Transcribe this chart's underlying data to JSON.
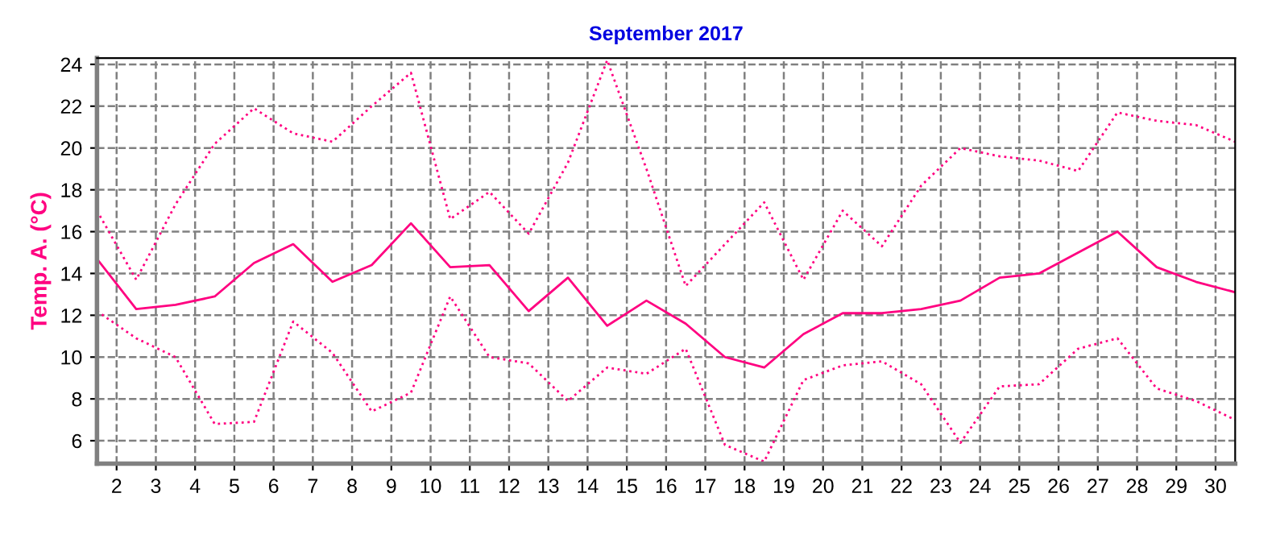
{
  "chart_data": {
    "type": "line",
    "title": "September 2017",
    "ylabel": "Temp. A. (°C)",
    "x": [
      1.5,
      2.5,
      3.5,
      4.5,
      5.5,
      6.5,
      7.5,
      8.5,
      9.5,
      10.5,
      11.5,
      12.5,
      13.5,
      14.5,
      15.5,
      16.5,
      17.5,
      18.5,
      19.5,
      20.5,
      21.5,
      22.5,
      23.5,
      24.5,
      25.5,
      26.5,
      27.5,
      28.5,
      29.5,
      30.5
    ],
    "series": [
      {
        "color": "#ff0080",
        "line_style": "dotted",
        "values": [
          17.0,
          13.7,
          17.3,
          20.2,
          21.9,
          20.7,
          20.3,
          22.0,
          23.6,
          16.6,
          17.9,
          15.9,
          19.3,
          24.2,
          19.0,
          13.4,
          15.4,
          17.4,
          13.7,
          17.0,
          15.3,
          18.2,
          20.0,
          19.6,
          19.4,
          18.9,
          21.7,
          21.3,
          21.1,
          20.3
        ]
      },
      {
        "color": "#ff0080",
        "line_style": "solid",
        "values": [
          14.7,
          12.3,
          12.5,
          12.9,
          14.5,
          15.4,
          13.6,
          14.4,
          16.4,
          14.3,
          14.4,
          12.2,
          13.8,
          11.5,
          12.7,
          11.6,
          10.0,
          9.5,
          11.1,
          12.1,
          12.1,
          12.3,
          12.7,
          13.8,
          14.0,
          15.0,
          16.0,
          14.3,
          13.6,
          13.1
        ]
      },
      {
        "color": "#ff0080",
        "line_style": "dotted",
        "values": [
          12.2,
          10.9,
          10.0,
          6.8,
          6.9,
          11.7,
          10.2,
          7.4,
          8.3,
          12.9,
          10.0,
          9.7,
          7.9,
          9.5,
          9.2,
          10.4,
          5.8,
          5.0,
          8.9,
          9.6,
          9.8,
          8.7,
          5.9,
          8.6,
          8.7,
          10.4,
          10.9,
          8.5,
          7.9,
          7.0
        ]
      }
    ],
    "xlim": [
      1.5,
      30.5
    ],
    "xticks": [
      2,
      3,
      4,
      5,
      6,
      7,
      8,
      9,
      10,
      11,
      12,
      13,
      14,
      15,
      16,
      17,
      18,
      19,
      20,
      21,
      22,
      23,
      24,
      25,
      26,
      27,
      28,
      29,
      30
    ],
    "ylim": [
      4.9,
      24.3
    ],
    "yticks": [
      6,
      8,
      10,
      12,
      14,
      16,
      18,
      20,
      22,
      24
    ],
    "grid": true,
    "marker": "none"
  }
}
